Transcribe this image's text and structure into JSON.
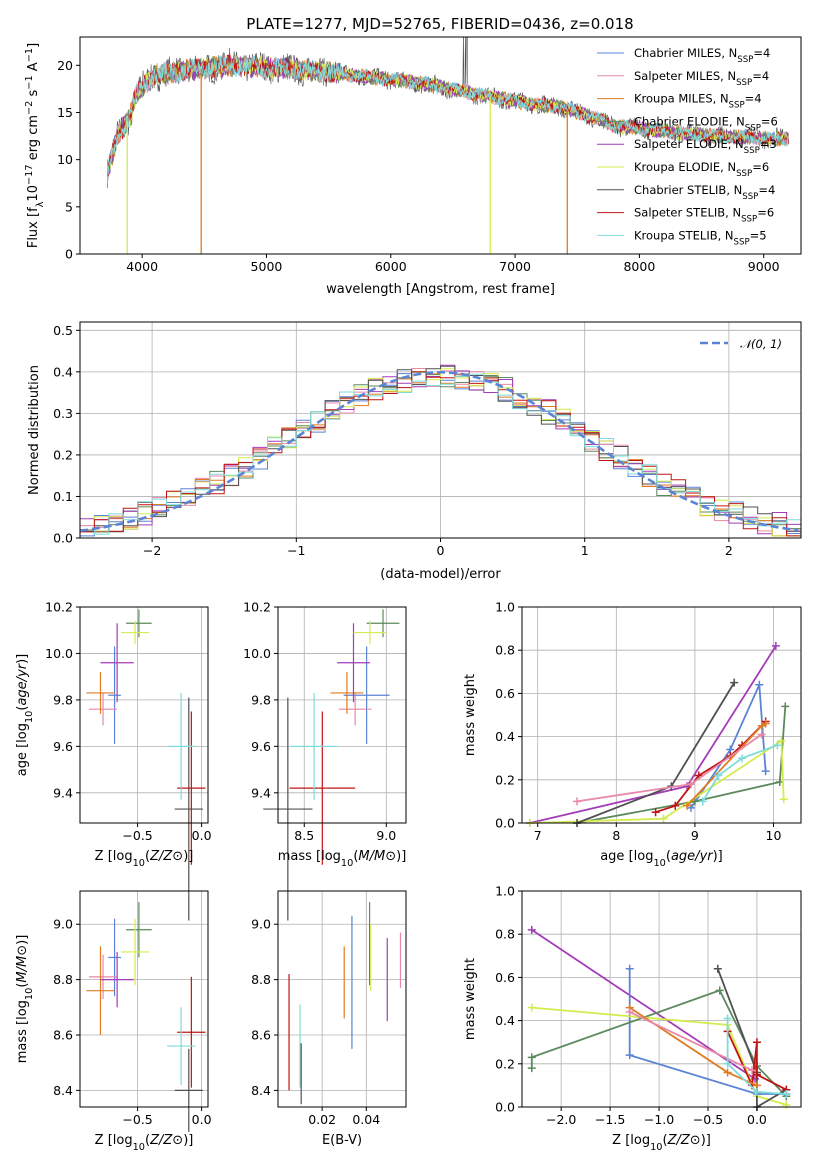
{
  "title": "PLATE=1277, MJD=52765, FIBERID=0436, z=0.018",
  "colors": {
    "blue": "#5b84d6",
    "orange": "#e07b20",
    "pink": "#e889a8",
    "green": "#5c8a5c",
    "purple": "#a43cb8",
    "yellow": "#d4ec4e",
    "dark": "#505050",
    "red": "#c01414",
    "cyan": "#7fdbdb"
  },
  "chart_data": [
    {
      "type": "line",
      "name": "spectrum",
      "xlabel": "wavelength [Angstrom, rest frame]",
      "ylabel": "Flux [f_λ10^-17 erg cm^-2 s^-1 A^-1]",
      "xlim": [
        3500,
        9300
      ],
      "ylim": [
        0,
        23
      ],
      "xticks": [
        "4000",
        "5000",
        "6000",
        "7000",
        "8000",
        "9000"
      ],
      "yticks": [
        "0",
        "5",
        "10",
        "15",
        "20"
      ],
      "grid": false,
      "legend_position": "top-right",
      "continuum_shape": [
        [
          3720,
          8.5
        ],
        [
          3800,
          12.5
        ],
        [
          3900,
          14.5
        ],
        [
          3950,
          17
        ],
        [
          4100,
          19
        ],
        [
          4400,
          19.5
        ],
        [
          4700,
          20
        ],
        [
          5000,
          19.8
        ],
        [
          5400,
          19.4
        ],
        [
          5800,
          18.8
        ],
        [
          6200,
          18.2
        ],
        [
          6600,
          17.2
        ],
        [
          7000,
          16.2
        ],
        [
          7400,
          15.5
        ],
        [
          7600,
          14.6
        ],
        [
          7800,
          13.6
        ],
        [
          8200,
          13.0
        ],
        [
          8600,
          12.5
        ],
        [
          9000,
          12.3
        ],
        [
          9200,
          12.2
        ]
      ],
      "dropouts": [
        {
          "x": 3880,
          "to": 0,
          "color": "yellow"
        },
        {
          "x": 4475,
          "to": 0,
          "color": "orange"
        },
        {
          "x": 6800,
          "to": 0,
          "color": "yellow"
        },
        {
          "x": 7420,
          "to": 0,
          "color": "orange"
        }
      ],
      "series": [
        {
          "name": "Chabrier MILES, N_SSP=4",
          "color": "blue",
          "legend_main": "Chabrier MILES, N",
          "legend_sub": "SSP",
          "legend_end": "=4"
        },
        {
          "name": "Salpeter MILES, N_SSP=4",
          "color": "pink",
          "legend_main": "Salpeter MILES, N",
          "legend_sub": "SSP",
          "legend_end": "=4"
        },
        {
          "name": "Kroupa MILES, N_SSP=4",
          "color": "orange",
          "legend_main": "Kroupa MILES, N",
          "legend_sub": "SSP",
          "legend_end": "=4"
        },
        {
          "name": "Chabrier ELODIE, N_SSP=6",
          "color": "green",
          "legend_main": "Chabrier ELODIE, N",
          "legend_sub": "SSP",
          "legend_end": "=6"
        },
        {
          "name": "Salpeter ELODIE, N_SSP=3",
          "color": "purple",
          "legend_main": "Salpeter ELODIE, N",
          "legend_sub": "SSP",
          "legend_end": "=3"
        },
        {
          "name": "Kroupa ELODIE, N_SSP=6",
          "color": "yellow",
          "legend_main": "Kroupa ELODIE, N",
          "legend_sub": "SSP",
          "legend_end": "=6"
        },
        {
          "name": "Chabrier STELIB, N_SSP=4",
          "color": "dark",
          "legend_main": "Chabrier STELIB, N",
          "legend_sub": "SSP",
          "legend_end": "=4"
        },
        {
          "name": "Salpeter STELIB, N_SSP=6",
          "color": "red",
          "legend_main": "Salpeter STELIB, N",
          "legend_sub": "SSP",
          "legend_end": "=6"
        },
        {
          "name": "Kroupa STELIB, N_SSP=5",
          "color": "cyan",
          "legend_main": "Kroupa STELIB, N",
          "legend_sub": "SSP",
          "legend_end": "=5"
        }
      ]
    },
    {
      "type": "histogram",
      "name": "residuals",
      "xlabel": "(data-model)/error",
      "ylabel": "Normed distribution",
      "xlim": [
        -2.5,
        2.5
      ],
      "ylim": [
        0,
        0.52
      ],
      "xticks": [
        -2,
        -1,
        0,
        1,
        2
      ],
      "xtick_labels": [
        "−2",
        "−1",
        "0",
        "1",
        "2"
      ],
      "yticks": [
        0,
        0.1,
        0.2,
        0.3,
        0.4,
        0.5
      ],
      "ytick_labels": [
        "0.0",
        "0.1",
        "0.2",
        "0.3",
        "0.4",
        "0.5"
      ],
      "grid": true,
      "bin_width": 0.1,
      "legend_label": "𝒩(0, 1)",
      "legend_position": "top-right",
      "reference_curve": {
        "type": "normal",
        "mean": 0,
        "sigma": 1,
        "color": "blue"
      }
    },
    {
      "type": "scatter",
      "name": "age-vs-metallicity",
      "xlabel": "Z [log10(Z/Z⊙)]",
      "ylabel": "age [log10(age/yr)]",
      "xlim": [
        -0.95,
        0.05
      ],
      "ylim": [
        9.27,
        10.2
      ],
      "xticks": [
        -0.5,
        0.0
      ],
      "xtick_labels": [
        "−0.5",
        "0.0"
      ],
      "yticks": [
        9.4,
        9.6,
        9.8,
        10.0,
        10.2
      ],
      "ytick_labels": [
        "9.4",
        "9.6",
        "9.8",
        "10.0",
        "10.2"
      ],
      "grid": true,
      "points": [
        {
          "color": "blue",
          "x": -0.68,
          "y": 9.82,
          "xerr": 0.05,
          "yerr": 0.21
        },
        {
          "color": "pink",
          "x": -0.77,
          "y": 9.76,
          "xerr": 0.11,
          "yerr": 0.07
        },
        {
          "color": "orange",
          "x": -0.79,
          "y": 9.83,
          "xerr": 0.11,
          "yerr": 0.09
        },
        {
          "color": "green",
          "x": -0.49,
          "y": 10.13,
          "xerr": 0.1,
          "yerr": 0.06
        },
        {
          "color": "purple",
          "x": -0.66,
          "y": 9.96,
          "xerr": 0.13,
          "yerr": 0.17
        },
        {
          "color": "yellow",
          "x": -0.52,
          "y": 10.09,
          "xerr": 0.11,
          "yerr": 0.05
        },
        {
          "color": "dark",
          "x": -0.1,
          "y": 9.33,
          "xerr": 0.11,
          "yerr": 0.48
        },
        {
          "color": "red",
          "x": -0.08,
          "y": 9.42,
          "xerr": 0.11,
          "yerr": 0.33
        },
        {
          "color": "cyan",
          "x": -0.16,
          "y": 9.6,
          "xerr": 0.11,
          "yerr": 0.23
        }
      ]
    },
    {
      "type": "scatter",
      "name": "age-vs-mass",
      "xlabel": "mass [log10(M/M⊙)]",
      "ylabel": "",
      "xlim": [
        8.34,
        9.12
      ],
      "ylim": [
        9.27,
        10.2
      ],
      "xticks": [
        8.5,
        9.0
      ],
      "xtick_labels": [
        "8.5",
        "9.0"
      ],
      "yticks": [
        9.4,
        9.6,
        9.8,
        10.0,
        10.2
      ],
      "ytick_labels": [
        "9.4",
        "9.6",
        "9.8",
        "10.0",
        "10.2"
      ],
      "grid": true,
      "points": [
        {
          "color": "blue",
          "x": 8.88,
          "y": 9.82,
          "xerr": 0.14,
          "yerr": 0.21
        },
        {
          "color": "pink",
          "x": 8.81,
          "y": 9.76,
          "xerr": 0.1,
          "yerr": 0.07
        },
        {
          "color": "orange",
          "x": 8.76,
          "y": 9.83,
          "xerr": 0.1,
          "yerr": 0.09
        },
        {
          "color": "green",
          "x": 8.98,
          "y": 10.13,
          "xerr": 0.1,
          "yerr": 0.06
        },
        {
          "color": "purple",
          "x": 8.8,
          "y": 9.96,
          "xerr": 0.1,
          "yerr": 0.17
        },
        {
          "color": "yellow",
          "x": 8.9,
          "y": 10.09,
          "xerr": 0.1,
          "yerr": 0.05
        },
        {
          "color": "dark",
          "x": 8.4,
          "y": 9.33,
          "xerr": 0.15,
          "yerr": 0.48
        },
        {
          "color": "red",
          "x": 8.61,
          "y": 9.42,
          "xerr": 0.2,
          "yerr": 0.33
        },
        {
          "color": "cyan",
          "x": 8.56,
          "y": 9.6,
          "xerr": 0.14,
          "yerr": 0.23
        }
      ]
    },
    {
      "type": "line",
      "name": "mass-weight-vs-age",
      "xlabel": "age [log10(age/yr)]",
      "ylabel": "mass weight",
      "xlim": [
        6.8,
        10.35
      ],
      "ylim": [
        0,
        1.0
      ],
      "xticks": [
        7,
        8,
        9,
        10
      ],
      "xtick_labels": [
        "7",
        "8",
        "9",
        "10"
      ],
      "yticks": [
        0,
        0.2,
        0.4,
        0.6,
        0.8,
        1.0
      ],
      "ytick_labels": [
        "0.0",
        "0.2",
        "0.4",
        "0.6",
        "0.8",
        "1.0"
      ],
      "grid": true,
      "series": [
        {
          "color": "purple",
          "points": [
            [
              6.9,
              0.0
            ],
            [
              8.9,
              0.17
            ],
            [
              10.03,
              0.82
            ]
          ]
        },
        {
          "color": "blue",
          "points": [
            [
              8.95,
              0.07
            ],
            [
              9.45,
              0.34
            ],
            [
              9.82,
              0.64
            ],
            [
              9.9,
              0.24
            ]
          ]
        },
        {
          "color": "green",
          "points": [
            [
              7.5,
              0.0
            ],
            [
              9.0,
              0.1
            ],
            [
              10.08,
              0.19
            ],
            [
              10.15,
              0.54
            ]
          ]
        },
        {
          "color": "yellow",
          "points": [
            [
              6.9,
              0.0
            ],
            [
              8.6,
              0.02
            ],
            [
              10.1,
              0.38
            ],
            [
              10.13,
              0.11
            ]
          ]
        },
        {
          "color": "dark",
          "points": [
            [
              7.5,
              0.0
            ],
            [
              8.7,
              0.17
            ],
            [
              9.5,
              0.65
            ]
          ]
        },
        {
          "color": "red",
          "points": [
            [
              8.5,
              0.05
            ],
            [
              8.75,
              0.08
            ],
            [
              9.05,
              0.22
            ],
            [
              9.45,
              0.31
            ],
            [
              9.6,
              0.36
            ],
            [
              9.9,
              0.47
            ]
          ]
        },
        {
          "color": "orange",
          "points": [
            [
              8.9,
              0.08
            ],
            [
              9.85,
              0.45
            ],
            [
              9.9,
              0.46
            ]
          ]
        },
        {
          "color": "pink",
          "points": [
            [
              7.5,
              0.1
            ],
            [
              8.95,
              0.18
            ],
            [
              9.85,
              0.41
            ]
          ]
        },
        {
          "color": "cyan",
          "points": [
            [
              9.1,
              0.1
            ],
            [
              9.3,
              0.22
            ],
            [
              9.6,
              0.3
            ],
            [
              10.05,
              0.36
            ]
          ]
        }
      ]
    },
    {
      "type": "scatter",
      "name": "mass-vs-metallicity",
      "xlabel": "Z [log10(Z/Z⊙)]",
      "ylabel": "mass [log10(M/M⊙)]",
      "xlim": [
        -0.95,
        0.05
      ],
      "ylim": [
        8.34,
        9.12
      ],
      "xticks": [
        -0.5,
        0.0
      ],
      "xtick_labels": [
        "−0.5",
        "0.0"
      ],
      "yticks": [
        8.4,
        8.6,
        8.8,
        9.0
      ],
      "ytick_labels": [
        "8.4",
        "8.6",
        "8.8",
        "9.0"
      ],
      "grid": true,
      "points": [
        {
          "color": "blue",
          "x": -0.68,
          "y": 8.88,
          "xerr": 0.05,
          "yerr": 0.14
        },
        {
          "color": "pink",
          "x": -0.77,
          "y": 8.81,
          "xerr": 0.11,
          "yerr": 0.08
        },
        {
          "color": "orange",
          "x": -0.79,
          "y": 8.76,
          "xerr": 0.11,
          "yerr": 0.16
        },
        {
          "color": "green",
          "x": -0.49,
          "y": 8.98,
          "xerr": 0.1,
          "yerr": 0.1
        },
        {
          "color": "purple",
          "x": -0.66,
          "y": 8.8,
          "xerr": 0.13,
          "yerr": 0.1
        },
        {
          "color": "yellow",
          "x": -0.52,
          "y": 8.9,
          "xerr": 0.11,
          "yerr": 0.12
        },
        {
          "color": "dark",
          "x": -0.1,
          "y": 8.4,
          "xerr": 0.11,
          "yerr": 0.15
        },
        {
          "color": "red",
          "x": -0.08,
          "y": 8.61,
          "xerr": 0.11,
          "yerr": 0.2
        },
        {
          "color": "cyan",
          "x": -0.16,
          "y": 8.56,
          "xerr": 0.11,
          "yerr": 0.14
        }
      ]
    },
    {
      "type": "scatter",
      "name": "mass-vs-reddening",
      "xlabel": "E(B-V)",
      "ylabel": "",
      "xlim": [
        0.0,
        0.058
      ],
      "ylim": [
        8.34,
        9.12
      ],
      "xticks": [
        0.02,
        0.04
      ],
      "xtick_labels": [
        "0.02",
        "0.04"
      ],
      "yticks": [
        8.4,
        8.6,
        8.8,
        9.0
      ],
      "ytick_labels": [
        "8.4",
        "8.6",
        "8.8",
        "9.0"
      ],
      "grid": true,
      "points": [
        {
          "color": "red",
          "x": 0.005,
          "y": 8.61,
          "yerr": 0.21
        },
        {
          "color": "cyan",
          "x": 0.01,
          "y": 8.56,
          "yerr": 0.15
        },
        {
          "color": "dark",
          "x": 0.0105,
          "y": 8.46,
          "yerr": 0.11
        },
        {
          "color": "orange",
          "x": 0.03,
          "y": 8.79,
          "yerr": 0.13
        },
        {
          "color": "blue",
          "x": 0.0335,
          "y": 8.79,
          "yerr": 0.24
        },
        {
          "color": "green",
          "x": 0.0415,
          "y": 8.93,
          "yerr": 0.15
        },
        {
          "color": "yellow",
          "x": 0.042,
          "y": 8.88,
          "yerr": 0.12
        },
        {
          "color": "purple",
          "x": 0.0495,
          "y": 8.8,
          "yerr": 0.15
        },
        {
          "color": "pink",
          "x": 0.0555,
          "y": 8.87,
          "yerr": 0.1
        }
      ]
    },
    {
      "type": "line",
      "name": "mass-weight-vs-metallicity",
      "xlabel": "Z [log10(Z/Z⊙)]",
      "ylabel": "mass weight",
      "xlim": [
        -2.4,
        0.45
      ],
      "ylim": [
        0,
        1.0
      ],
      "xticks": [
        -2.0,
        -1.5,
        -1.0,
        -0.5,
        0.0
      ],
      "xtick_labels": [
        "−2.0",
        "−1.5",
        "−1.0",
        "−0.5",
        "0.0"
      ],
      "yticks": [
        0,
        0.2,
        0.4,
        0.6,
        0.8,
        1.0
      ],
      "ytick_labels": [
        "0.0",
        "0.2",
        "0.4",
        "0.6",
        "0.8",
        "1.0"
      ],
      "grid": true,
      "series": [
        {
          "color": "purple",
          "points": [
            [
              -2.3,
              0.82
            ],
            [
              -0.02,
              0.13
            ]
          ]
        },
        {
          "color": "blue",
          "points": [
            [
              -1.3,
              0.64
            ],
            [
              -1.3,
              0.24
            ],
            [
              0.0,
              0.06
            ],
            [
              0.3,
              0.06
            ]
          ]
        },
        {
          "color": "green",
          "points": [
            [
              -2.3,
              0.18
            ],
            [
              -2.3,
              0.23
            ],
            [
              -0.38,
              0.54
            ],
            [
              0.0,
              0.19
            ],
            [
              0.3,
              0.05
            ]
          ]
        },
        {
          "color": "yellow",
          "points": [
            [
              -2.3,
              0.46
            ],
            [
              -0.3,
              0.38
            ],
            [
              0.0,
              0.05
            ],
            [
              0.3,
              0.01
            ]
          ]
        },
        {
          "color": "dark",
          "points": [
            [
              -0.4,
              0.64
            ],
            [
              0.0,
              0.16
            ],
            [
              0.0,
              0.0
            ],
            [
              0.3,
              0.08
            ]
          ]
        },
        {
          "color": "red",
          "points": [
            [
              -0.3,
              0.35
            ],
            [
              -0.05,
              0.1
            ],
            [
              0.0,
              0.3
            ],
            [
              0.0,
              0.15
            ],
            [
              0.3,
              0.08
            ]
          ]
        },
        {
          "color": "orange",
          "points": [
            [
              -1.3,
              0.46
            ],
            [
              -0.3,
              0.16
            ],
            [
              0.0,
              0.1
            ]
          ]
        },
        {
          "color": "pink",
          "points": [
            [
              -1.3,
              0.44
            ],
            [
              -0.05,
              0.17
            ]
          ]
        },
        {
          "color": "cyan",
          "points": [
            [
              -0.3,
              0.41
            ],
            [
              -0.3,
              0.2
            ],
            [
              0.0,
              0.07
            ],
            [
              0.3,
              0.06
            ]
          ]
        }
      ]
    }
  ]
}
